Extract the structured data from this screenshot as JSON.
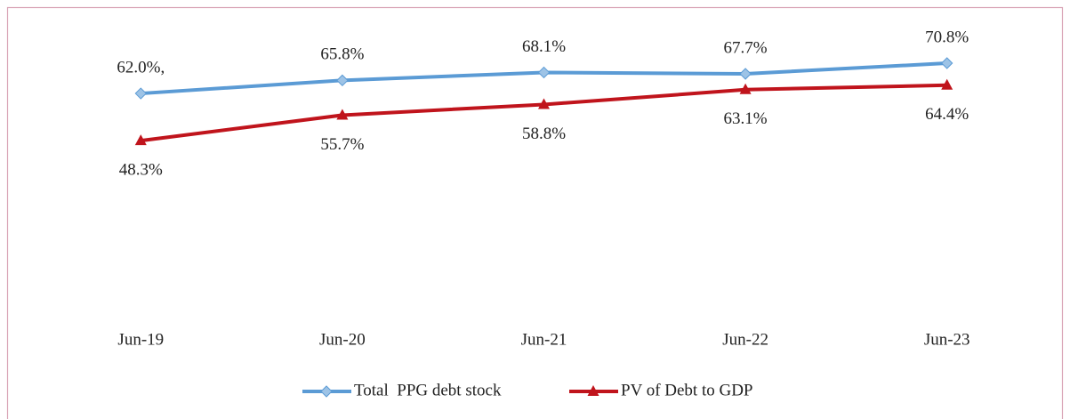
{
  "chart_data": {
    "type": "line",
    "categories": [
      "Jun-19",
      "Jun-20",
      "Jun-21",
      "Jun-22",
      "Jun-23"
    ],
    "series": [
      {
        "name": "Total  PPG debt stock",
        "color": "#5b9bd5",
        "marker": "diamond",
        "label_position": "above",
        "values": [
          62.0,
          65.8,
          68.1,
          67.7,
          70.8
        ],
        "value_labels": [
          "62.0%,",
          "65.8%",
          "68.1%",
          "67.7%",
          "70.8%"
        ]
      },
      {
        "name": "PV of Debt to GDP",
        "color": "#c0141c",
        "marker": "triangle",
        "label_position": "below",
        "values": [
          48.3,
          55.7,
          58.8,
          63.1,
          64.4
        ],
        "value_labels": [
          "48.3%",
          "55.7%",
          "58.8%",
          "63.1%",
          "64.4%"
        ]
      }
    ],
    "legend": "bottom",
    "grid": false
  }
}
